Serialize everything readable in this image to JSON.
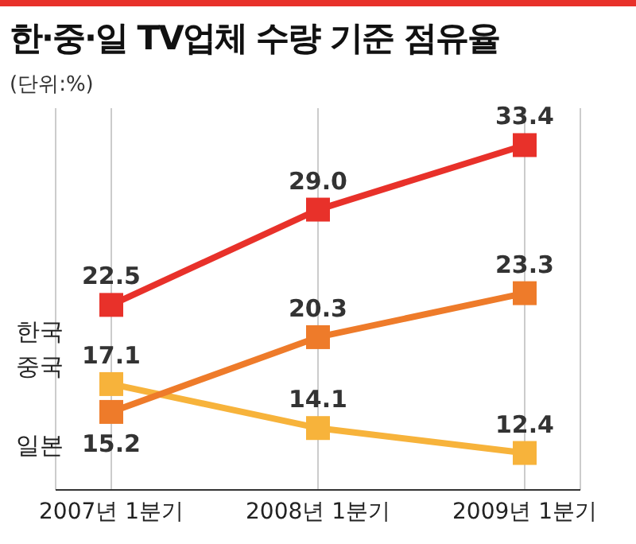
{
  "chart_data": {
    "type": "line",
    "title": "한·중·일 TV업체 수량 기준 점유율",
    "subtitle": "(단위:%)",
    "categories": [
      "2007년 1분기",
      "2008년 1분기",
      "2009년 1분기"
    ],
    "series": [
      {
        "name": "한국",
        "color": "#e8312a",
        "values": [
          22.5,
          29.0,
          33.4
        ],
        "value_labels": [
          "22.5",
          "29.0",
          "33.4"
        ]
      },
      {
        "name": "중국",
        "color": "#f7b33b",
        "values": [
          17.1,
          14.1,
          12.4
        ],
        "value_labels": [
          "17.1",
          "14.1",
          "12.4"
        ]
      },
      {
        "name": "일본",
        "color": "#ee7b2a",
        "values": [
          15.2,
          20.3,
          23.3
        ],
        "value_labels": [
          "15.2",
          "20.3",
          "23.3"
        ]
      }
    ],
    "grid": "x",
    "marker": "square",
    "line_style": "solid"
  }
}
